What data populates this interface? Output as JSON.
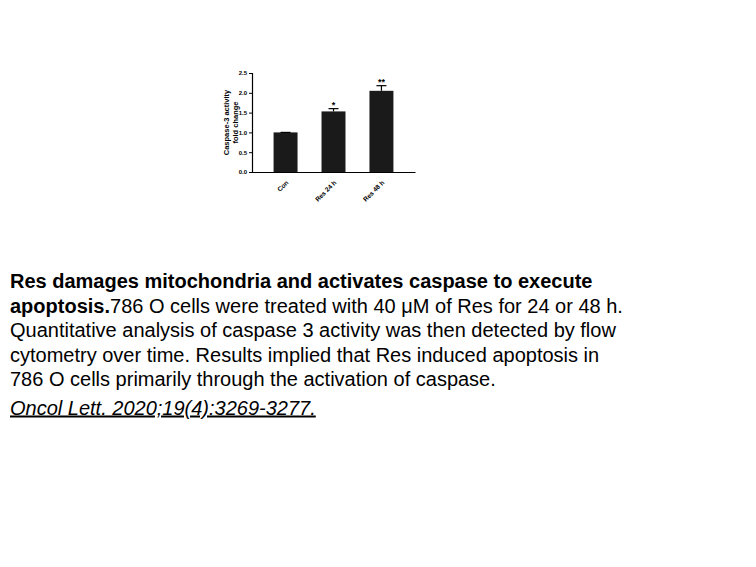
{
  "chart_data": {
    "type": "bar",
    "y_label": [
      "Caspase-3 activity",
      "fold change"
    ],
    "categories": [
      "Con",
      "Res 24 h",
      "Res 48 h"
    ],
    "values": [
      1.0,
      1.53,
      2.05
    ],
    "errors": [
      0.0,
      0.07,
      0.13
    ],
    "color": "#1a1a1a",
    "ylim": [
      0,
      2.5
    ],
    "yticks": [
      {
        "value": 0,
        "label": "0.0"
      },
      {
        "value": 0.5,
        "label": "0.5"
      },
      {
        "value": 1,
        "label": "1.0"
      },
      {
        "value": 1.5,
        "label": "1.5"
      },
      {
        "value": 2,
        "label": "2.0"
      },
      {
        "value": 2.5,
        "label": "2.5"
      }
    ],
    "annotations": [
      {
        "category": "Res 24 h",
        "text": "*"
      },
      {
        "category": "Res 48 h",
        "text": "**"
      }
    ]
  },
  "caption": {
    "title_lines": [
      "Res damages mitochondria and activates caspase to execute",
      "apoptosis."
    ],
    "body_lines": [
      "786 O cells were treated with 40 μM of Res for 24 or 48 h.",
      "Quantitative analysis of caspase 3 activity was then detected by flow",
      "cytometry over time. Results implied that Res induced apoptosis in",
      "786 O cells primarily through the activation of caspase."
    ],
    "citation": "Oncol Lett. 2020;19(4):3269-3277."
  }
}
